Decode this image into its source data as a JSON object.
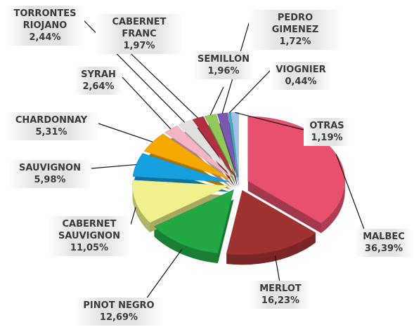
{
  "chart_data": {
    "type": "pie",
    "categories": [
      "MALBEC",
      "MERLOT",
      "PINOT NEGRO",
      "CABERNET SAUVIGNON",
      "SAUVIGNON",
      "CHARDONNAY",
      "SYRAH",
      "TORRONTES RIOJANO",
      "CABERNET FRANC",
      "SEMILLON",
      "PEDRO GIMENEZ",
      "VIOGNIER",
      "OTRAS"
    ],
    "values": [
      36.39,
      16.23,
      12.69,
      11.05,
      5.98,
      5.31,
      2.64,
      2.44,
      1.97,
      1.96,
      1.72,
      0.44,
      1.19
    ],
    "value_labels": [
      "36,39%",
      "16,23%",
      "12,69%",
      "11,05%",
      "5,98%",
      "5,31%",
      "2,64%",
      "2,44%",
      "1,97%",
      "1,96%",
      "1,72%",
      "0,44%",
      "1,19%"
    ],
    "colors": [
      "#e8506e",
      "#a03232",
      "#22a845",
      "#f0f08c",
      "#16a0e0",
      "#f4a800",
      "#f4b4c4",
      "#e0e0e0",
      "#b03040",
      "#94c858",
      "#7a58b0",
      "#3cb0c0",
      "#a0c0e8"
    ]
  }
}
